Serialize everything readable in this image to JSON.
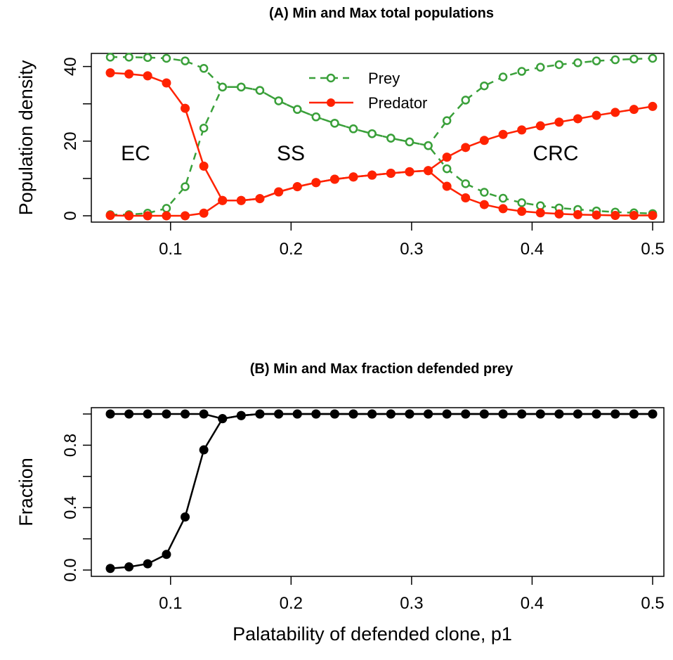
{
  "colors": {
    "prey": "#3aa03a",
    "predator": "#ff2200",
    "fraction": "#000000"
  },
  "chart_data": [
    {
      "type": "line",
      "title": "(A) Min and Max total populations",
      "xlabel": "",
      "ylabel": "Population density",
      "xlim": [
        0.05,
        0.5
      ],
      "ylim": [
        0,
        42
      ],
      "x_ticks": [
        "0.1",
        "0.2",
        "0.3",
        "0.4",
        "0.5"
      ],
      "y_ticks": [
        "0",
        "20",
        "40"
      ],
      "legend": {
        "position": "top-center",
        "entries": [
          "Prey",
          "Predator"
        ]
      },
      "region_labels": [
        "EC",
        "SS",
        "CRC"
      ],
      "x": [
        0.05,
        0.0655,
        0.081,
        0.0966,
        0.1121,
        0.1276,
        0.1431,
        0.1586,
        0.1741,
        0.1897,
        0.2052,
        0.2207,
        0.2362,
        0.2517,
        0.2672,
        0.2828,
        0.2983,
        0.3138,
        0.3293,
        0.3448,
        0.3603,
        0.3759,
        0.3914,
        0.4069,
        0.4224,
        0.4379,
        0.4534,
        0.469,
        0.4845,
        0.5
      ],
      "series": [
        {
          "name": "Prey",
          "style": "dashed-open-circles",
          "values": [
            42.5,
            42.5,
            42.4,
            42.2,
            41.5,
            39.5,
            34.5,
            34.5,
            33.6,
            30.8,
            28.5,
            26.5,
            24.8,
            23.3,
            22.0,
            20.8,
            19.8,
            18.8,
            12.6,
            8.6,
            6.3,
            4.7,
            3.5,
            2.7,
            2.1,
            1.7,
            1.3,
            1.0,
            0.8,
            0.6
          ]
        },
        {
          "name": "Prey",
          "style": "dashed-open-circles",
          "values": [
            0.3,
            0.3,
            0.7,
            2.0,
            7.8,
            23.5,
            34.5,
            34.5,
            33.6,
            30.8,
            28.5,
            26.5,
            24.8,
            23.3,
            22.0,
            20.8,
            19.8,
            18.8,
            25.5,
            31.0,
            34.8,
            37.2,
            38.7,
            39.8,
            40.5,
            41.0,
            41.5,
            41.8,
            42.0,
            42.2
          ]
        },
        {
          "name": "Predator",
          "style": "solid-filled-circles",
          "values": [
            38.3,
            38.0,
            37.5,
            35.6,
            28.8,
            13.3,
            4.1,
            4.1,
            4.6,
            6.4,
            7.8,
            8.9,
            9.8,
            10.4,
            10.9,
            11.4,
            11.8,
            12.1,
            15.7,
            18.3,
            20.2,
            21.8,
            23.0,
            24.1,
            25.1,
            26.0,
            26.9,
            27.7,
            28.5,
            29.3
          ]
        },
        {
          "name": "Predator",
          "style": "solid-filled-circles",
          "values": [
            0.1,
            0.0,
            0.0,
            0.0,
            0.0,
            0.7,
            4.1,
            4.1,
            4.6,
            6.4,
            7.8,
            8.9,
            9.8,
            10.4,
            10.9,
            11.4,
            11.8,
            12.1,
            7.9,
            4.8,
            3.0,
            1.9,
            1.2,
            0.8,
            0.5,
            0.3,
            0.2,
            0.1,
            0.1,
            0.1
          ]
        }
      ]
    },
    {
      "type": "line",
      "title": "(B) Min and Max fraction defended prey",
      "xlabel": "Palatability of defended clone, p1",
      "ylabel": "Fraction",
      "xlim": [
        0.05,
        0.5
      ],
      "ylim": [
        0,
        1
      ],
      "x_ticks": [
        "0.1",
        "0.2",
        "0.3",
        "0.4",
        "0.5"
      ],
      "y_ticks": [
        "0.0",
        "0.4",
        "0.8"
      ],
      "x": [
        0.05,
        0.0655,
        0.081,
        0.0966,
        0.1121,
        0.1276,
        0.1431,
        0.1586,
        0.1741,
        0.1897,
        0.2052,
        0.2207,
        0.2362,
        0.2517,
        0.2672,
        0.2828,
        0.2983,
        0.3138,
        0.3293,
        0.3448,
        0.3603,
        0.3759,
        0.3914,
        0.4069,
        0.4224,
        0.4379,
        0.4534,
        0.469,
        0.4845,
        0.5
      ],
      "series": [
        {
          "name": "",
          "style": "solid-filled-circles",
          "values": [
            1,
            1,
            1,
            1,
            1,
            1,
            0.97,
            0.99,
            1,
            1,
            1,
            1,
            1,
            1,
            1,
            1,
            1,
            1,
            1,
            1,
            1,
            1,
            1,
            1,
            1,
            1,
            1,
            1,
            1,
            1
          ]
        },
        {
          "name": "",
          "style": "solid-filled-circles",
          "values": [
            0.01,
            0.02,
            0.04,
            0.1,
            0.34,
            0.77,
            0.97,
            0.99,
            1,
            1,
            1,
            1,
            1,
            1,
            1,
            1,
            1,
            1,
            1,
            1,
            1,
            1,
            1,
            1,
            1,
            1,
            1,
            1,
            1,
            1
          ]
        }
      ]
    }
  ]
}
